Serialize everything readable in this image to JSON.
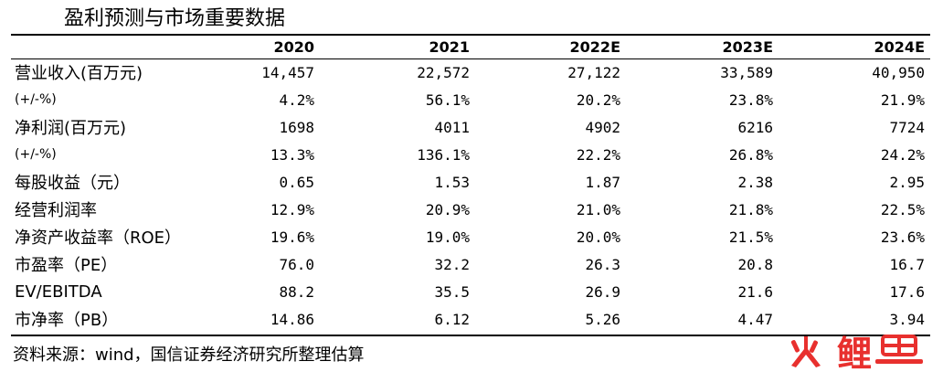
{
  "title": "盈利预测与市场重要数据",
  "table": {
    "columns": [
      "",
      "2020",
      "2021",
      "2022E",
      "2023E",
      "2024E"
    ],
    "rows": [
      {
        "label": "营业收入(百万元)",
        "small": false,
        "values": [
          "14,457",
          "22,572",
          "27,122",
          "33,589",
          "40,950"
        ]
      },
      {
        "label": "(+/-%)",
        "small": true,
        "values": [
          "4.2%",
          "56.1%",
          "20.2%",
          "23.8%",
          "21.9%"
        ]
      },
      {
        "label": "净利润(百万元)",
        "small": false,
        "values": [
          "1698",
          "4011",
          "4902",
          "6216",
          "7724"
        ]
      },
      {
        "label": "(+/-%)",
        "small": true,
        "values": [
          "13.3%",
          "136.1%",
          "22.2%",
          "26.8%",
          "24.2%"
        ]
      },
      {
        "label": "每股收益（元）",
        "small": false,
        "values": [
          "0.65",
          "1.53",
          "1.87",
          "2.38",
          "2.95"
        ]
      },
      {
        "label": "经营利润率",
        "small": false,
        "values": [
          "12.9%",
          "20.9%",
          "21.0%",
          "21.8%",
          "22.5%"
        ]
      },
      {
        "label": "净资产收益率（ROE）",
        "small": false,
        "values": [
          "19.6%",
          "19.0%",
          "20.0%",
          "21.5%",
          "23.6%"
        ]
      },
      {
        "label": "市盈率（PE）",
        "small": false,
        "values": [
          "76.0",
          "32.2",
          "26.3",
          "20.8",
          "16.7"
        ]
      },
      {
        "label": "EV/EBITDA",
        "small": false,
        "values": [
          "88.2",
          "35.5",
          "26.9",
          "21.6",
          "17.6"
        ]
      },
      {
        "label": "市净率（PB）",
        "small": false,
        "values": [
          "14.86",
          "6.12",
          "5.26",
          "4.47",
          "3.94"
        ]
      }
    ]
  },
  "source": "资料来源：wind，国信证券经济研究所整理估算",
  "watermark": {
    "text": "鲤",
    "color": "#e8302e"
  }
}
